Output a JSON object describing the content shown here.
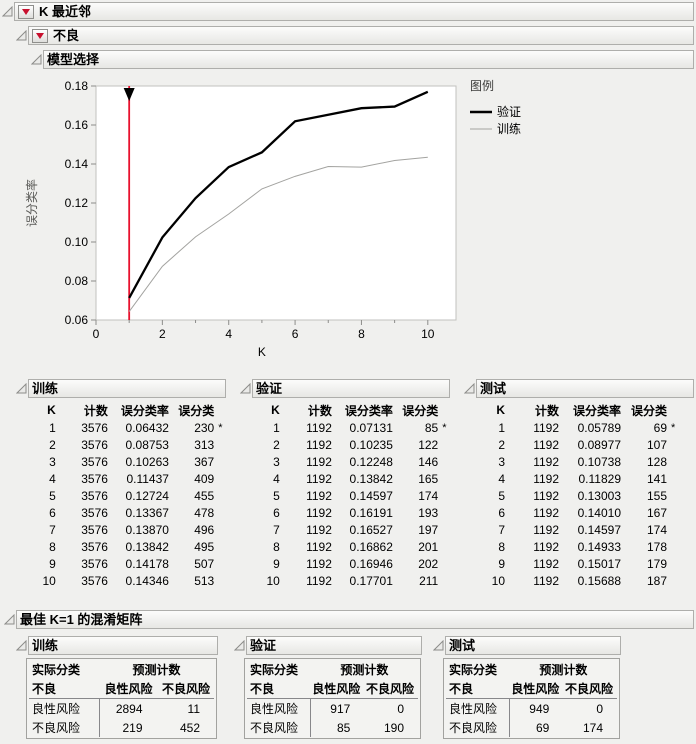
{
  "outline": {
    "root_title": "K 最近邻",
    "group_title": "不良",
    "model_selection_title": "模型选择",
    "confusion_section_title": "最佳 K=1 的混淆矩阵"
  },
  "colors": {
    "marker_red": "#e8112d",
    "validation_line": "#000000",
    "training_line": "#a3a3a0"
  },
  "chart_data": {
    "type": "line",
    "title": "",
    "xlabel": "K",
    "ylabel": "误分类率",
    "xlim": [
      0,
      10.85
    ],
    "ylim": [
      0.06,
      0.18
    ],
    "x_ticks": [
      0,
      2,
      4,
      6,
      8,
      10
    ],
    "x_minor_ticks": [
      1,
      3,
      5,
      7,
      9
    ],
    "y_ticks": [
      0.06,
      0.08,
      0.1,
      0.12,
      0.14,
      0.16,
      0.18
    ],
    "grid": false,
    "legend_position": "right",
    "legend_title": "图例",
    "marker_line": {
      "x": 1,
      "color": "#e8112d"
    },
    "x": [
      1,
      2,
      3,
      4,
      5,
      6,
      7,
      8,
      9,
      10
    ],
    "series": [
      {
        "name": "验证",
        "color": "#000000",
        "width": 2.3,
        "values": [
          0.07131,
          0.10235,
          0.12248,
          0.13842,
          0.14597,
          0.16191,
          0.16527,
          0.16862,
          0.16946,
          0.17701
        ]
      },
      {
        "name": "训练",
        "color": "#a3a3a0",
        "width": 1,
        "values": [
          0.06432,
          0.08753,
          0.10263,
          0.11437,
          0.12724,
          0.13367,
          0.1387,
          0.13842,
          0.14178,
          0.14346
        ]
      }
    ]
  },
  "tables": [
    {
      "title": "训练",
      "columns": [
        "K",
        "计数",
        "误分类率",
        "误分类"
      ],
      "rows": [
        [
          "1",
          "3576",
          "0.06432",
          "230",
          "*"
        ],
        [
          "2",
          "3576",
          "0.08753",
          "313",
          ""
        ],
        [
          "3",
          "3576",
          "0.10263",
          "367",
          ""
        ],
        [
          "4",
          "3576",
          "0.11437",
          "409",
          ""
        ],
        [
          "5",
          "3576",
          "0.12724",
          "455",
          ""
        ],
        [
          "6",
          "3576",
          "0.13367",
          "478",
          ""
        ],
        [
          "7",
          "3576",
          "0.13870",
          "496",
          ""
        ],
        [
          "8",
          "3576",
          "0.13842",
          "495",
          ""
        ],
        [
          "9",
          "3576",
          "0.14178",
          "507",
          ""
        ],
        [
          "10",
          "3576",
          "0.14346",
          "513",
          ""
        ]
      ]
    },
    {
      "title": "验证",
      "columns": [
        "K",
        "计数",
        "误分类率",
        "误分类"
      ],
      "rows": [
        [
          "1",
          "1192",
          "0.07131",
          "85",
          "*"
        ],
        [
          "2",
          "1192",
          "0.10235",
          "122",
          ""
        ],
        [
          "3",
          "1192",
          "0.12248",
          "146",
          ""
        ],
        [
          "4",
          "1192",
          "0.13842",
          "165",
          ""
        ],
        [
          "5",
          "1192",
          "0.14597",
          "174",
          ""
        ],
        [
          "6",
          "1192",
          "0.16191",
          "193",
          ""
        ],
        [
          "7",
          "1192",
          "0.16527",
          "197",
          ""
        ],
        [
          "8",
          "1192",
          "0.16862",
          "201",
          ""
        ],
        [
          "9",
          "1192",
          "0.16946",
          "202",
          ""
        ],
        [
          "10",
          "1192",
          "0.17701",
          "211",
          ""
        ]
      ]
    },
    {
      "title": "测试",
      "columns": [
        "K",
        "计数",
        "误分类率",
        "误分类"
      ],
      "rows": [
        [
          "1",
          "1192",
          "0.05789",
          "69",
          "*"
        ],
        [
          "2",
          "1192",
          "0.08977",
          "107",
          ""
        ],
        [
          "3",
          "1192",
          "0.10738",
          "128",
          ""
        ],
        [
          "4",
          "1192",
          "0.11829",
          "141",
          ""
        ],
        [
          "5",
          "1192",
          "0.13003",
          "155",
          ""
        ],
        [
          "6",
          "1192",
          "0.14010",
          "167",
          ""
        ],
        [
          "7",
          "1192",
          "0.14597",
          "174",
          ""
        ],
        [
          "8",
          "1192",
          "0.14933",
          "178",
          ""
        ],
        [
          "9",
          "1192",
          "0.15017",
          "179",
          ""
        ],
        [
          "10",
          "1192",
          "0.15688",
          "187",
          ""
        ]
      ]
    }
  ],
  "confusion": {
    "row_header": "实际分类",
    "col_header": "预测计数",
    "response": "不良",
    "levels": [
      "良性风险",
      "不良风险"
    ],
    "matrices": [
      {
        "title": "训练",
        "rows": [
          [
            "2894",
            "11"
          ],
          [
            "219",
            "452"
          ]
        ]
      },
      {
        "title": "验证",
        "rows": [
          [
            "917",
            "0"
          ],
          [
            "85",
            "190"
          ]
        ]
      },
      {
        "title": "测试",
        "rows": [
          [
            "949",
            "0"
          ],
          [
            "69",
            "174"
          ]
        ]
      }
    ]
  }
}
